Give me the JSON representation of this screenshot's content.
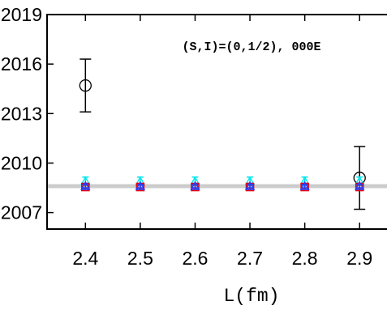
{
  "chart_data": {
    "type": "scatter",
    "title": "",
    "annotation": "(S,I)=(0,1/2), 000E",
    "xlabel": "L(fm)",
    "ylabel": "",
    "xlim": [
      2.33,
      2.95
    ],
    "ylim": [
      2006,
      2019
    ],
    "xticks": [
      2.4,
      2.5,
      2.6,
      2.7,
      2.8,
      2.9
    ],
    "xtick_labels": [
      "2.4",
      "2.5",
      "2.6",
      "2.7",
      "2.8",
      "2.9"
    ],
    "yticks": [
      2007,
      2010,
      2013,
      2016,
      2019
    ],
    "ytick_labels": [
      "2007",
      "2010",
      "2013",
      "2016",
      "2019"
    ],
    "grid": false,
    "reference_line": {
      "y": 2008.6,
      "color": "#cccccc"
    },
    "series": [
      {
        "marker": "circle",
        "color": "#000000",
        "x": [
          2.4,
          2.9
        ],
        "y": [
          2014.7,
          2009.1
        ],
        "yerr": [
          1.6,
          1.9
        ]
      },
      {
        "marker": "triangle",
        "color": "#00e5ee",
        "x": [
          2.4,
          2.5,
          2.6,
          2.7,
          2.8,
          2.9
        ],
        "y": [
          2008.9,
          2008.9,
          2008.9,
          2008.9,
          2008.9,
          2008.9
        ],
        "yerr": [
          0.25,
          0.25,
          0.25,
          0.25,
          0.25,
          0.25
        ]
      },
      {
        "marker": "square",
        "color": "#e8000b",
        "x": [
          2.4,
          2.5,
          2.6,
          2.7,
          2.8,
          2.9
        ],
        "y": [
          2008.55,
          2008.55,
          2008.55,
          2008.55,
          2008.55,
          2008.55
        ],
        "yerr": [
          0.12,
          0.12,
          0.12,
          0.12,
          0.12,
          0.12
        ]
      },
      {
        "marker": "triangle",
        "color": "#1f3fff",
        "x": [
          2.4,
          2.5,
          2.6,
          2.7,
          2.8,
          2.9
        ],
        "y": [
          2008.6,
          2008.6,
          2008.6,
          2008.6,
          2008.6,
          2008.6
        ],
        "yerr": [
          0.1,
          0.1,
          0.1,
          0.1,
          0.1,
          0.1
        ]
      }
    ]
  }
}
